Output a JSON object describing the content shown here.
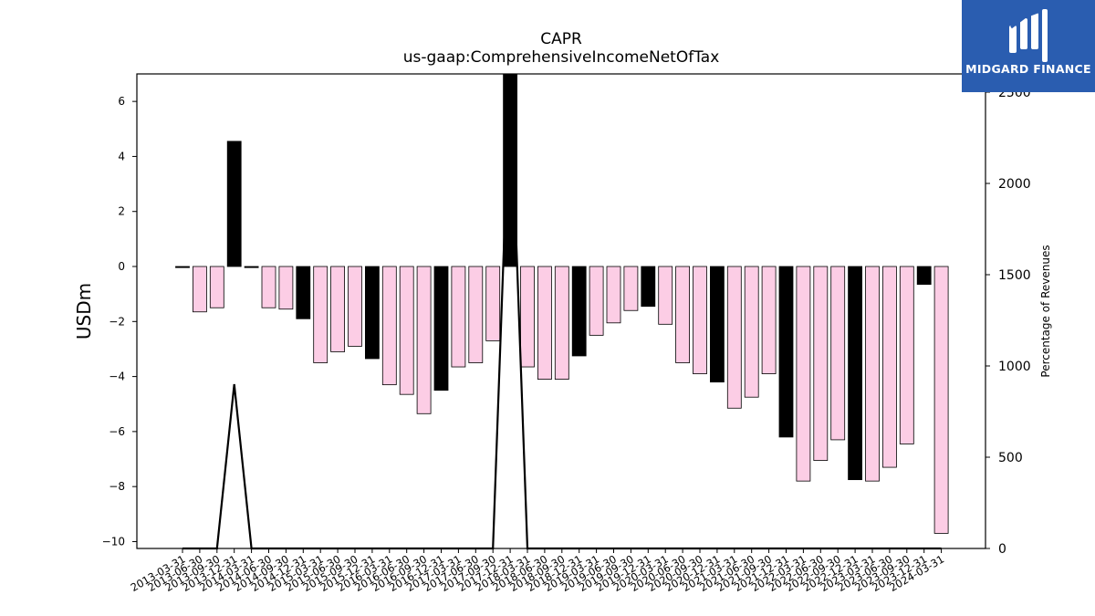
{
  "chart_data": {
    "type": "bar",
    "title": "CAPR",
    "subtitle": "us-gaap:ComprehensiveIncomeNetOfTax",
    "ylabel": "USDm",
    "ylabel_right": "Percentage of Revenues",
    "ylim": [
      -10.25,
      7.0
    ],
    "ylim_right": [
      0,
      2600
    ],
    "yticks": [
      6,
      4,
      2,
      0,
      -2,
      -4,
      -6,
      -8,
      -10
    ],
    "yticks_right": [
      2500,
      2000,
      1500,
      1000,
      500,
      0
    ],
    "categories": [
      "2013-03-31",
      "2013-06-30",
      "2013-09-30",
      "2013-12-31",
      "2014-03-31",
      "2014-06-30",
      "2014-09-30",
      "2014-12-31",
      "2015-03-31",
      "2015-06-30",
      "2015-09-30",
      "2015-12-31",
      "2016-03-31",
      "2016-06-30",
      "2016-09-30",
      "2016-12-31",
      "2017-03-31",
      "2017-06-30",
      "2017-09-30",
      "2017-12-31",
      "2018-03-31",
      "2018-06-30",
      "2018-09-30",
      "2018-12-31",
      "2019-03-31",
      "2019-06-30",
      "2019-09-30",
      "2019-12-31",
      "2020-03-31",
      "2020-06-30",
      "2020-09-30",
      "2020-12-31",
      "2021-03-31",
      "2021-06-30",
      "2021-09-30",
      "2021-12-31",
      "2022-03-31",
      "2022-06-30",
      "2022-09-30",
      "2022-12-31",
      "2023-03-31",
      "2023-06-30",
      "2023-09-30",
      "2023-12-31",
      "2024-03-31"
    ],
    "values": [
      -0.03,
      -1.65,
      -1.5,
      4.55,
      0.0,
      -1.5,
      -1.55,
      -1.9,
      -3.5,
      -3.1,
      -2.9,
      -3.35,
      -4.3,
      -4.65,
      -5.35,
      -4.5,
      -3.65,
      -3.5,
      -2.7,
      7.0,
      -3.65,
      -4.1,
      -4.1,
      -3.25,
      -2.5,
      -2.05,
      -1.6,
      -1.45,
      -2.1,
      -3.5,
      -3.9,
      -4.2,
      -5.15,
      -4.75,
      -3.9,
      -6.2,
      -7.8,
      -7.05,
      -6.3,
      -7.75,
      -7.8,
      -7.3,
      -6.45,
      -0.65,
      -9.7
    ],
    "highlight": [
      true,
      false,
      false,
      true,
      true,
      false,
      false,
      true,
      false,
      false,
      false,
      true,
      false,
      false,
      false,
      true,
      false,
      false,
      false,
      true,
      false,
      false,
      false,
      true,
      false,
      false,
      false,
      true,
      false,
      false,
      false,
      true,
      false,
      false,
      false,
      true,
      false,
      false,
      false,
      true,
      false,
      false,
      false,
      true,
      false
    ],
    "pct_of_revenues": [
      0,
      0,
      0,
      900,
      0,
      0,
      0,
      0,
      0,
      0,
      0,
      0,
      0,
      0,
      0,
      0,
      0,
      0,
      0,
      2600,
      0,
      0,
      0,
      0,
      0,
      0,
      0,
      0,
      0,
      0,
      0,
      0,
      0,
      0,
      0,
      0,
      0,
      0,
      0,
      0,
      0,
      0,
      0,
      0,
      0
    ],
    "colors": {
      "highlight": "#000000",
      "normal": "#fccde5",
      "line": "#000000"
    },
    "grid": false
  },
  "logo": {
    "text": "MIDGARD FINANCE",
    "bg": "#2a5db0"
  }
}
